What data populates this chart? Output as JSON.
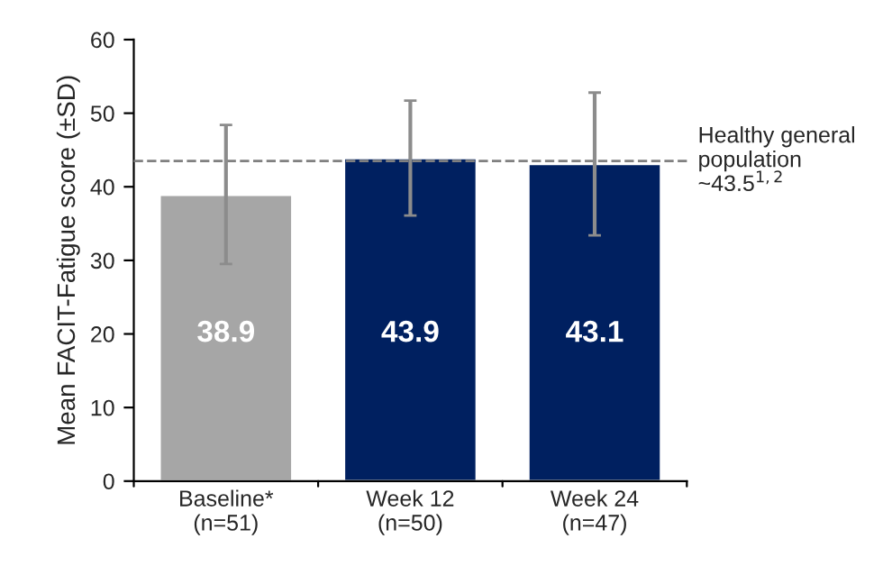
{
  "chart_data": {
    "type": "bar",
    "ylabel": "Mean FACIT-Fatigue score (±SD)",
    "categories": [
      "Baseline*\n(n=51)",
      "Week 12\n(n=50)",
      "Week 24\n(n=47)"
    ],
    "values": [
      38.9,
      43.9,
      43.1
    ],
    "colors": [
      "#a6a6a6",
      "#002060",
      "#002060"
    ],
    "errors": [
      [
        29.5,
        48.4
      ],
      [
        36.1,
        51.7
      ],
      [
        33.4,
        52.8
      ]
    ],
    "ylim": [
      0,
      60
    ],
    "yticks": [
      0,
      10,
      20,
      30,
      40,
      50,
      60
    ],
    "ref_lines": [
      {
        "axis": "y",
        "value": 43.5,
        "label": "Healthy general\npopulation\n~43.5$^{1,2}$",
        "color": "#808080",
        "line_style": "dashed"
      }
    ],
    "data_labels": true,
    "grid": false,
    "legend": false
  }
}
